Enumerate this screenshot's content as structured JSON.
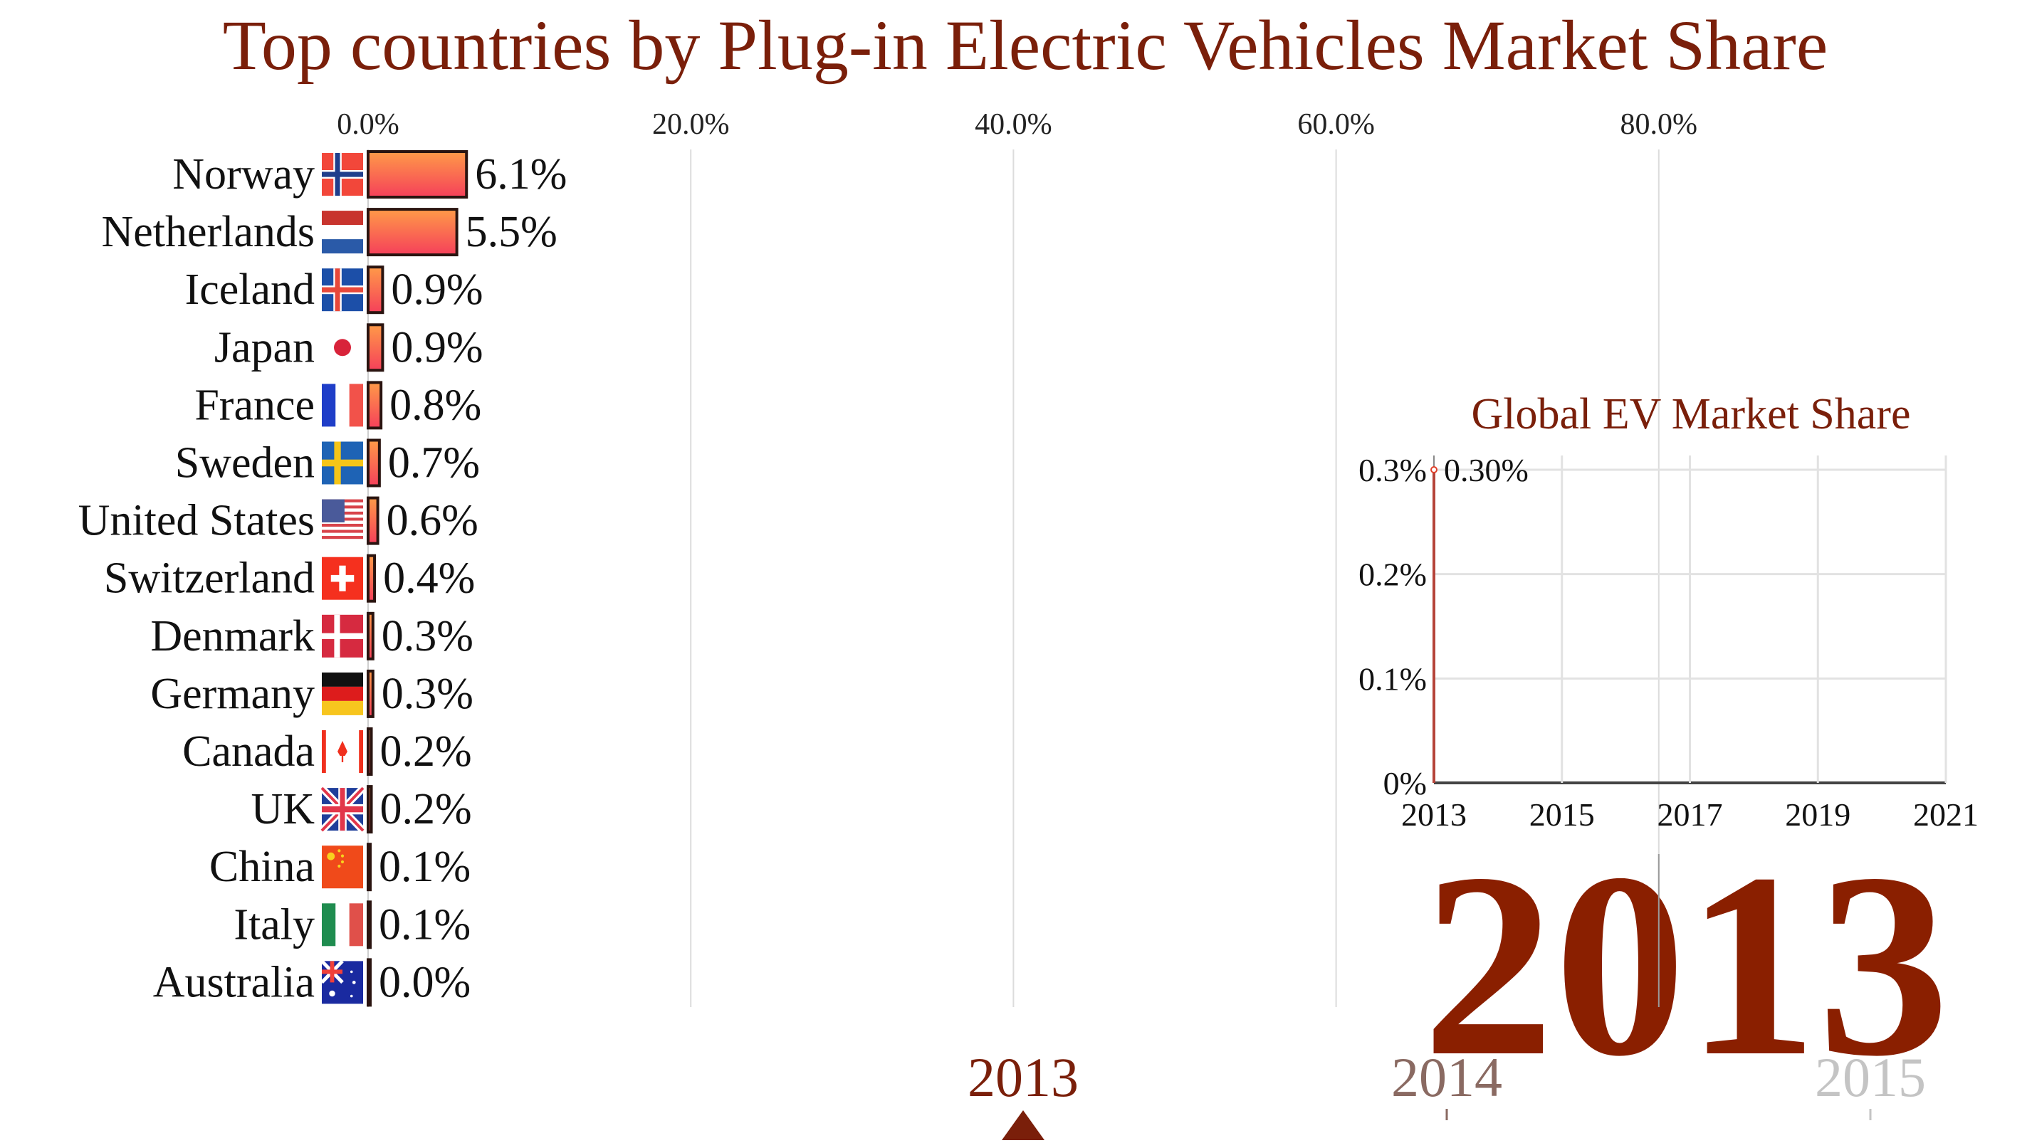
{
  "header": {
    "title": "Top countries by Plug-in Electric Vehicles Market Share"
  },
  "colors": {
    "title": "#7a1f0a",
    "accent": "#8a1f00",
    "bar_top": "#ff9a48",
    "bar_bottom": "#f5405a",
    "bar_border": "#2a1410",
    "gridline": "#dcdcdc",
    "inset_line": "#b5443a"
  },
  "chart_data": [
    {
      "type": "bar",
      "orientation": "horizontal",
      "title": "Top countries by Plug-in Electric Vehicles Market Share",
      "xlabel": "",
      "ylabel": "",
      "xlim": [
        0,
        100
      ],
      "x_ticks": [
        0,
        20,
        40,
        60,
        80
      ],
      "x_tick_labels": [
        "0.0%",
        "20.0%",
        "40.0%",
        "60.0%",
        "80.0%"
      ],
      "grid": true,
      "year": "2013",
      "categories": [
        "Norway",
        "Netherlands",
        "Iceland",
        "Japan",
        "France",
        "Sweden",
        "United States",
        "Switzerland",
        "Denmark",
        "Germany",
        "Canada",
        "UK",
        "China",
        "Italy",
        "Australia"
      ],
      "values": [
        6.1,
        5.5,
        0.9,
        0.9,
        0.8,
        0.7,
        0.6,
        0.4,
        0.3,
        0.3,
        0.2,
        0.2,
        0.1,
        0.1,
        0.0
      ],
      "value_labels": [
        "6.1%",
        "5.5%",
        "0.9%",
        "0.9%",
        "0.8%",
        "0.7%",
        "0.6%",
        "0.4%",
        "0.3%",
        "0.3%",
        "0.2%",
        "0.2%",
        "0.1%",
        "0.1%",
        "0.0%"
      ],
      "flags": [
        "norway-flag",
        "netherlands-flag",
        "iceland-flag",
        "japan-flag",
        "france-flag",
        "sweden-flag",
        "usa-flag",
        "switzerland-flag",
        "denmark-flag",
        "germany-flag",
        "canada-flag",
        "uk-flag",
        "china-flag",
        "italy-flag",
        "australia-flag"
      ]
    },
    {
      "type": "line",
      "title": "Global EV Market Share",
      "xlabel": "",
      "ylabel": "",
      "xlim": [
        2013,
        2021
      ],
      "ylim": [
        0,
        0.3
      ],
      "x_ticks": [
        2013,
        2015,
        2017,
        2019,
        2021
      ],
      "x_tick_labels": [
        "2013",
        "2015",
        "2017",
        "2019",
        "2021"
      ],
      "y_ticks": [
        0,
        0.1,
        0.2,
        0.3
      ],
      "y_tick_labels": [
        "0%",
        "0.1%",
        "0.2%",
        "0.3%"
      ],
      "grid": true,
      "series": [
        {
          "name": "Global EV Market Share",
          "x": [
            2013
          ],
          "values": [
            0.3
          ]
        }
      ],
      "annotation": "0.30%"
    }
  ],
  "year_display": "2013",
  "timeline": {
    "years": [
      "2013",
      "2014",
      "2015"
    ],
    "current": "2013"
  }
}
